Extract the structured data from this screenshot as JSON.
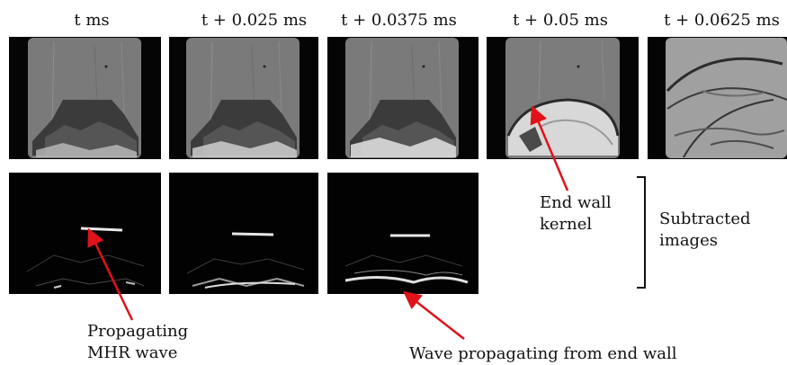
{
  "columns": [
    {
      "title": "t ms"
    },
    {
      "title": "t + 0.025 ms"
    },
    {
      "title": "t + 0.0375 ms"
    },
    {
      "title": "t + 0.05 ms"
    },
    {
      "title": "t + 0.0625 ms"
    }
  ],
  "rows": [
    {
      "name": "raw-frames",
      "count": 5
    },
    {
      "name": "subtracted-frames",
      "count": 3
    }
  ],
  "annotations": {
    "end_wall_kernel": [
      "End wall",
      "kernel"
    ],
    "subtracted_images": [
      "Subtracted",
      "images"
    ],
    "propagating_mhr_wave": [
      "Propagating",
      "MHR wave"
    ],
    "wave_from_end_wall": "Wave propagating from end wall"
  },
  "colors": {
    "arrow": "#e0121a",
    "frame_border": "#000000",
    "background": "#ffffff"
  }
}
